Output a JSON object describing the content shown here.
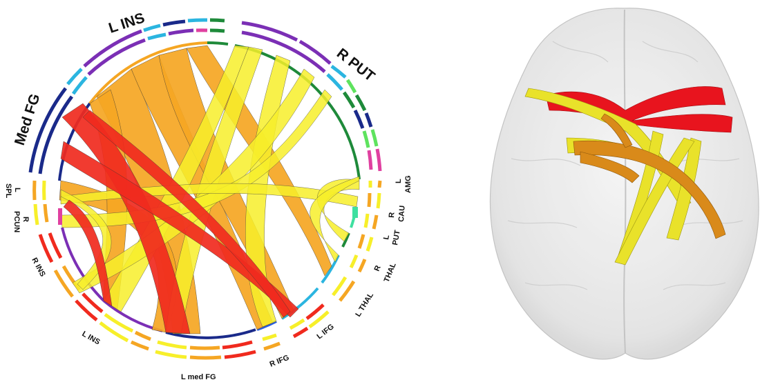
{
  "chord_diagram": {
    "top_labels": {
      "med_fg": "Med FG",
      "l_ins": "L INS",
      "r_put": "R PUT"
    },
    "side_labels": {
      "l_spl_1": "L",
      "l_spl_2": "SPL",
      "r_pcun_1": "R",
      "r_pcun_2": "PCUN",
      "r_ins": "R INS",
      "l_ins_bottom": "L INS",
      "l_med_fg": "L med FG",
      "r_ifg": "R IFG",
      "l_ifg": "L IFG",
      "l_thal": "L THAL",
      "r_thal_1": "R",
      "r_thal_2": "THAL",
      "l_put_1": "L",
      "l_put_2": "PUT",
      "r_cau_1": "R",
      "r_cau_2": "CAU",
      "l_amg_1": "L",
      "l_amg_2": "AMG"
    },
    "colors": {
      "red": "#f02a1e",
      "orange": "#f5a623",
      "yellow": "#f7ef2a",
      "dark_blue": "#1a2a8a",
      "purple": "#7b2fb5",
      "cyan": "#2bb5e0",
      "green": "#1e8a3a",
      "magenta": "#e040a0"
    }
  },
  "brain_render": {
    "colors": {
      "red": "#e8141e",
      "orange": "#d98a1a",
      "yellow": "#e9e22a",
      "shell": "#d8d8d8"
    }
  }
}
